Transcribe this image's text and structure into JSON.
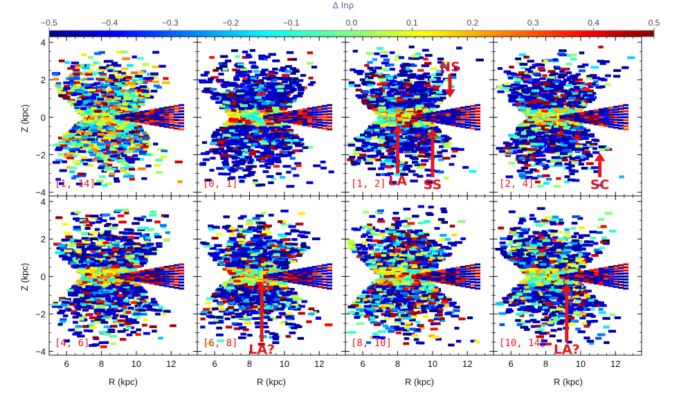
{
  "chart_data": {
    "type": "scatter",
    "description_title": "",
    "colorbar": {
      "title": "Δ lnρ",
      "range": [
        -0.5,
        0.5
      ],
      "ticks": [
        -0.5,
        -0.4,
        -0.3,
        -0.2,
        -0.1,
        0.0,
        0.1,
        0.2,
        0.3,
        0.4,
        0.5
      ],
      "tick_labels": [
        "−0.5",
        "−0.4",
        "−0.3",
        "−0.2",
        "−0.1",
        "0.0",
        "0.1",
        "0.2",
        "0.3",
        "0.4",
        "0.5"
      ],
      "colormap": "jet"
    },
    "xlabel": "R (kpc)",
    "ylabel": "Z (kpc)",
    "xlim": [
      5,
      13.5
    ],
    "ylim": [
      -4.2,
      4.3
    ],
    "xticks": [
      6,
      8,
      10,
      12
    ],
    "yticks": [
      -4,
      -2,
      0,
      2,
      4
    ],
    "xtick_labels": [
      "6",
      "8",
      "10",
      "12"
    ],
    "ytick_labels": [
      "−4",
      "−2",
      "0",
      "2",
      "4"
    ],
    "panels": [
      {
        "label": "[1, 14]",
        "annotations": []
      },
      {
        "label": "[0, 1]",
        "annotations": []
      },
      {
        "label": "[1, 2]",
        "annotations": [
          {
            "text": "NS",
            "R": 11.0,
            "Z_tip": 1.05,
            "Z_tail": 2.3,
            "direction": "down"
          },
          {
            "text": "LA",
            "R": 8.0,
            "Z_tip": -0.4,
            "Z_tail": -3.0,
            "direction": "up"
          },
          {
            "text": "SS",
            "R": 10.0,
            "Z_tip": -0.6,
            "Z_tail": -3.2,
            "direction": "up"
          }
        ]
      },
      {
        "label": "[2, 4]",
        "annotations": [
          {
            "text": "SC",
            "R": 11.1,
            "Z_tip": -1.9,
            "Z_tail": -3.2,
            "direction": "up"
          }
        ]
      },
      {
        "label": "[4, 6]",
        "annotations": []
      },
      {
        "label": "[6, 8]",
        "annotations": [
          {
            "text": "LA?",
            "R": 8.7,
            "Z_tip": -0.3,
            "Z_tail": -3.5,
            "direction": "up"
          }
        ]
      },
      {
        "label": "[8, 10]",
        "annotations": []
      },
      {
        "label": "[10, 14]",
        "annotations": [
          {
            "text": "LA?",
            "R": 9.2,
            "Z_tip": -0.4,
            "Z_tail": -3.5,
            "direction": "up"
          }
        ]
      }
    ]
  }
}
